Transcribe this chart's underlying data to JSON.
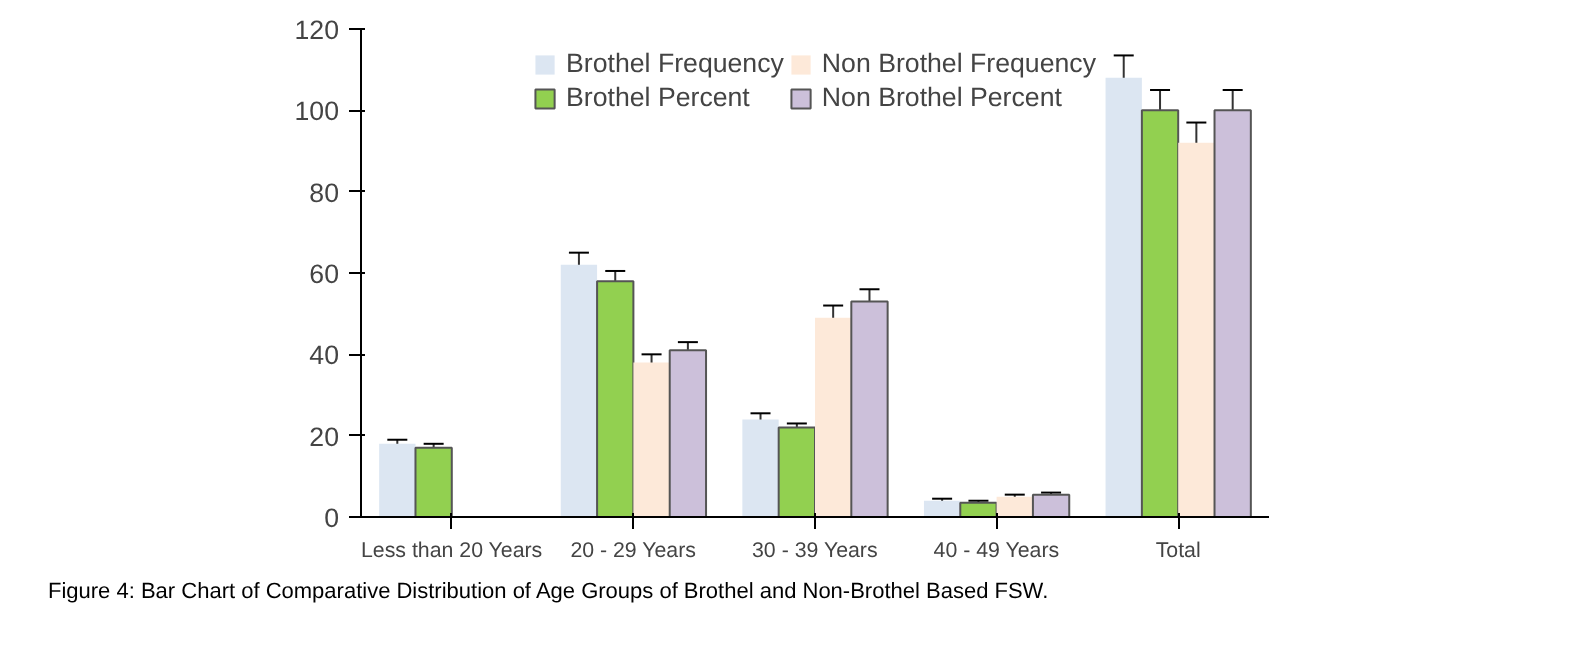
{
  "chart_data": {
    "type": "bar",
    "categories": [
      "Less than 20 Years",
      "20 - 29 Years",
      "30 - 39 Years",
      "40 - 49 Years",
      "Total"
    ],
    "series": [
      {
        "name": "Brothel Frequency",
        "color": "#dce6f2",
        "values": [
          18,
          62,
          24,
          4,
          108
        ],
        "errors": [
          1,
          3,
          1.5,
          0.5,
          5.5
        ]
      },
      {
        "name": "Brothel Percent",
        "color": "#92d050",
        "values": [
          17,
          58,
          22,
          3.5,
          100
        ],
        "errors": [
          1,
          2.5,
          1,
          0.5,
          5
        ]
      },
      {
        "name": "Non Brothel Frequency",
        "color": "#fde9d9",
        "values": [
          null,
          38,
          49,
          5,
          92
        ],
        "errors": [
          null,
          2,
          3,
          0.5,
          5
        ]
      },
      {
        "name": "Non Brothel Percent",
        "color": "#ccc0da",
        "values": [
          null,
          41,
          53,
          5.5,
          100
        ],
        "errors": [
          null,
          2,
          3,
          0.5,
          5
        ]
      }
    ],
    "ylim": [
      0,
      120
    ],
    "yticks": [
      0,
      20,
      40,
      60,
      80,
      100,
      120
    ],
    "grid": false,
    "legend": "top",
    "annotations": [
      "Figure 4: Bar Chart of Comparative Distribution of Age Groups of Brothel and Non-Brothel Based FSW."
    ]
  }
}
